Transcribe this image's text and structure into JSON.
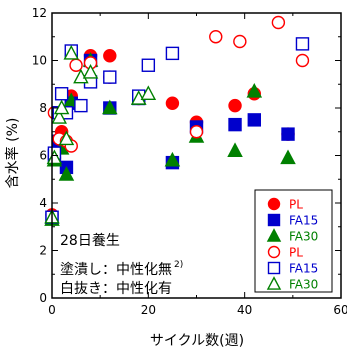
{
  "colors": {
    "PL": "#ff0000",
    "FA15": "#0000cc",
    "FA30": "#008000"
  },
  "chart_data": {
    "type": "scatter",
    "xlabel": "サイクル数(週)",
    "ylabel": "含水率 (%)",
    "xlim": [
      0,
      60
    ],
    "ylim": [
      0,
      12
    ],
    "xticks": [
      "0",
      "20",
      "40",
      "60"
    ],
    "yticks": [
      "0",
      "2",
      "4",
      "6",
      "8",
      "10",
      "12"
    ],
    "grid": false,
    "legend_position": "bottom-right",
    "annotations": {
      "curing": "28日養生",
      "filled_label": "塗潰し：中性化無",
      "filled_sup": "2)",
      "open_label": "白抜き：中性化有"
    },
    "series": [
      {
        "name": "PL",
        "group": "filled",
        "marker": "circle",
        "color": "PL",
        "points": [
          [
            0,
            3.5
          ],
          [
            0.5,
            5.9
          ],
          [
            1.5,
            6.5
          ],
          [
            2,
            7.0
          ],
          [
            3,
            7.8
          ],
          [
            4,
            8.5
          ],
          [
            8,
            10.2
          ],
          [
            12,
            10.2
          ],
          [
            18,
            8.4
          ],
          [
            25,
            8.2
          ],
          [
            30,
            7.4
          ],
          [
            38,
            8.1
          ],
          [
            42,
            8.6
          ],
          [
            49,
            6.9
          ]
        ]
      },
      {
        "name": "FA15",
        "group": "filled",
        "marker": "square",
        "color": "FA15",
        "points": [
          [
            0,
            3.4
          ],
          [
            0.5,
            6.0
          ],
          [
            1.5,
            6.6
          ],
          [
            3,
            5.5
          ],
          [
            4,
            8.2
          ],
          [
            8,
            10.0
          ],
          [
            12,
            8.0
          ],
          [
            18,
            8.4
          ],
          [
            25,
            5.7
          ],
          [
            30,
            7.2
          ],
          [
            38,
            7.3
          ],
          [
            42,
            7.5
          ],
          [
            49,
            6.9
          ]
        ]
      },
      {
        "name": "FA30",
        "group": "filled",
        "marker": "triangle",
        "color": "FA30",
        "points": [
          [
            0,
            3.3
          ],
          [
            0.5,
            5.8
          ],
          [
            2,
            6.3
          ],
          [
            3,
            5.2
          ],
          [
            4,
            8.3
          ],
          [
            8,
            10.0
          ],
          [
            12,
            8.0
          ],
          [
            18,
            8.4
          ],
          [
            25,
            5.8
          ],
          [
            30,
            6.8
          ],
          [
            38,
            6.2
          ],
          [
            42,
            8.7
          ],
          [
            49,
            5.9
          ]
        ]
      },
      {
        "name": "PL",
        "group": "open",
        "marker": "circle",
        "color": "PL",
        "points": [
          [
            0.5,
            7.8
          ],
          [
            1.5,
            6.7
          ],
          [
            3,
            6.6
          ],
          [
            4,
            6.4
          ],
          [
            5,
            9.8
          ],
          [
            8,
            9.9
          ],
          [
            12,
            9.3
          ],
          [
            30,
            7.0
          ],
          [
            34,
            11.0
          ],
          [
            39,
            10.8
          ],
          [
            47,
            11.6
          ],
          [
            52,
            10.0
          ]
        ]
      },
      {
        "name": "FA15",
        "group": "open",
        "marker": "square",
        "color": "FA15",
        "points": [
          [
            0,
            3.4
          ],
          [
            0.5,
            6.1
          ],
          [
            1.5,
            7.8
          ],
          [
            2,
            8.6
          ],
          [
            3,
            7.8
          ],
          [
            4,
            10.4
          ],
          [
            6,
            8.1
          ],
          [
            8,
            9.1
          ],
          [
            12,
            9.3
          ],
          [
            18,
            8.5
          ],
          [
            20,
            9.8
          ],
          [
            25,
            10.3
          ],
          [
            52,
            10.7
          ]
        ]
      },
      {
        "name": "FA30",
        "group": "open",
        "marker": "triangle",
        "color": "FA30",
        "points": [
          [
            0,
            3.4
          ],
          [
            0.5,
            5.9
          ],
          [
            1.5,
            7.6
          ],
          [
            2,
            8.0
          ],
          [
            3,
            6.7
          ],
          [
            4,
            10.3
          ],
          [
            6,
            9.3
          ],
          [
            8,
            9.5
          ],
          [
            18,
            8.4
          ],
          [
            20,
            8.6
          ]
        ]
      }
    ]
  }
}
